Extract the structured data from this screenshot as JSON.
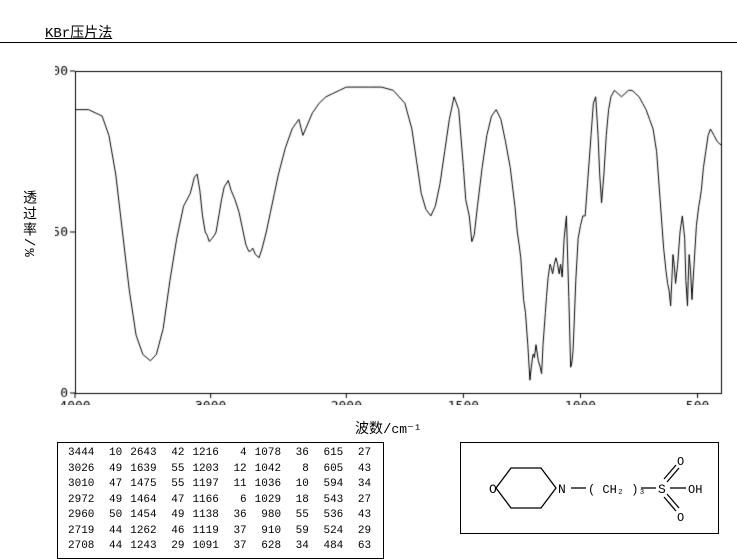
{
  "title": "KBr压片法",
  "ylabel": "透过率/%",
  "xlabel_prefix": "波数/",
  "xlabel_unit": "cm⁻¹",
  "colors": {
    "bg": "#ffffff",
    "axis": "#000000",
    "spectrum": "#000000",
    "text": "#000000"
  },
  "axes": {
    "xlim": [
      4000,
      400
    ],
    "ylim": [
      0,
      100
    ],
    "xticks": [
      4000,
      3000,
      2000,
      1500,
      1000,
      500
    ],
    "yticks": [
      0,
      50,
      100
    ],
    "label_fontsize": 14,
    "tick_fontsize": 13
  },
  "peak_table": {
    "cols": 6,
    "rows": [
      [
        3444,
        10,
        2643,
        42,
        1216,
        4,
        1078,
        36,
        615,
        27
      ],
      [
        3026,
        49,
        1639,
        55,
        1203,
        12,
        1042,
        8,
        605,
        43
      ],
      [
        3010,
        47,
        1475,
        55,
        1197,
        11,
        1036,
        10,
        594,
        34
      ],
      [
        2972,
        49,
        1464,
        47,
        1166,
        6,
        1029,
        18,
        543,
        27
      ],
      [
        2960,
        50,
        1454,
        49,
        1138,
        36,
        980,
        55,
        536,
        43
      ],
      [
        2719,
        44,
        1262,
        46,
        1119,
        37,
        910,
        59,
        524,
        29
      ],
      [
        2708,
        44,
        1243,
        29,
        1091,
        37,
        628,
        34,
        484,
        63
      ]
    ]
  },
  "molecule": {
    "label": "N— ( CH₂ )₃—S—OH",
    "ring": "morpholine",
    "so3_oxygens": 3
  },
  "spectrum": {
    "line_width": 1,
    "points": [
      [
        4000,
        88
      ],
      [
        3900,
        88
      ],
      [
        3800,
        86
      ],
      [
        3750,
        80
      ],
      [
        3700,
        68
      ],
      [
        3650,
        50
      ],
      [
        3600,
        32
      ],
      [
        3550,
        18
      ],
      [
        3500,
        12
      ],
      [
        3444,
        10
      ],
      [
        3400,
        12
      ],
      [
        3350,
        20
      ],
      [
        3300,
        35
      ],
      [
        3250,
        48
      ],
      [
        3200,
        58
      ],
      [
        3150,
        62
      ],
      [
        3120,
        67
      ],
      [
        3100,
        68
      ],
      [
        3080,
        63
      ],
      [
        3060,
        55
      ],
      [
        3040,
        50
      ],
      [
        3026,
        49
      ],
      [
        3010,
        47
      ],
      [
        2990,
        48
      ],
      [
        2972,
        49
      ],
      [
        2960,
        50
      ],
      [
        2940,
        55
      ],
      [
        2920,
        60
      ],
      [
        2900,
        64
      ],
      [
        2870,
        66
      ],
      [
        2850,
        63
      ],
      [
        2820,
        60
      ],
      [
        2790,
        56
      ],
      [
        2760,
        50
      ],
      [
        2740,
        46
      ],
      [
        2719,
        44
      ],
      [
        2708,
        44
      ],
      [
        2690,
        45
      ],
      [
        2670,
        43
      ],
      [
        2643,
        42
      ],
      [
        2620,
        45
      ],
      [
        2590,
        50
      ],
      [
        2560,
        56
      ],
      [
        2530,
        62
      ],
      [
        2500,
        68
      ],
      [
        2450,
        76
      ],
      [
        2400,
        82
      ],
      [
        2350,
        85
      ],
      [
        2320,
        80
      ],
      [
        2300,
        82
      ],
      [
        2250,
        87
      ],
      [
        2200,
        90
      ],
      [
        2150,
        92
      ],
      [
        2100,
        93
      ],
      [
        2050,
        94
      ],
      [
        2000,
        95
      ],
      [
        1950,
        95
      ],
      [
        1900,
        95
      ],
      [
        1850,
        95
      ],
      [
        1800,
        94
      ],
      [
        1750,
        90
      ],
      [
        1720,
        82
      ],
      [
        1700,
        72
      ],
      [
        1680,
        62
      ],
      [
        1660,
        57
      ],
      [
        1639,
        55
      ],
      [
        1620,
        58
      ],
      [
        1600,
        65
      ],
      [
        1580,
        75
      ],
      [
        1560,
        85
      ],
      [
        1540,
        92
      ],
      [
        1520,
        88
      ],
      [
        1500,
        70
      ],
      [
        1490,
        60
      ],
      [
        1475,
        55
      ],
      [
        1464,
        47
      ],
      [
        1454,
        49
      ],
      [
        1440,
        58
      ],
      [
        1420,
        70
      ],
      [
        1400,
        80
      ],
      [
        1380,
        86
      ],
      [
        1360,
        88
      ],
      [
        1340,
        85
      ],
      [
        1320,
        78
      ],
      [
        1300,
        70
      ],
      [
        1280,
        58
      ],
      [
        1270,
        50
      ],
      [
        1262,
        46
      ],
      [
        1255,
        42
      ],
      [
        1243,
        29
      ],
      [
        1235,
        25
      ],
      [
        1225,
        15
      ],
      [
        1216,
        4
      ],
      [
        1210,
        8
      ],
      [
        1203,
        12
      ],
      [
        1200,
        12
      ],
      [
        1197,
        11
      ],
      [
        1190,
        15
      ],
      [
        1180,
        10
      ],
      [
        1172,
        8
      ],
      [
        1166,
        6
      ],
      [
        1160,
        15
      ],
      [
        1150,
        25
      ],
      [
        1145,
        30
      ],
      [
        1138,
        36
      ],
      [
        1130,
        40
      ],
      [
        1125,
        39
      ],
      [
        1119,
        37
      ],
      [
        1112,
        40
      ],
      [
        1105,
        42
      ],
      [
        1098,
        40
      ],
      [
        1091,
        37
      ],
      [
        1085,
        40
      ],
      [
        1078,
        36
      ],
      [
        1070,
        48
      ],
      [
        1060,
        55
      ],
      [
        1050,
        30
      ],
      [
        1042,
        8
      ],
      [
        1038,
        9
      ],
      [
        1036,
        10
      ],
      [
        1032,
        13
      ],
      [
        1029,
        18
      ],
      [
        1020,
        35
      ],
      [
        1010,
        48
      ],
      [
        1000,
        52
      ],
      [
        990,
        55
      ],
      [
        980,
        55
      ],
      [
        970,
        65
      ],
      [
        955,
        80
      ],
      [
        945,
        90
      ],
      [
        935,
        92
      ],
      [
        925,
        80
      ],
      [
        918,
        68
      ],
      [
        910,
        59
      ],
      [
        900,
        68
      ],
      [
        890,
        80
      ],
      [
        880,
        88
      ],
      [
        870,
        92
      ],
      [
        855,
        94
      ],
      [
        840,
        93
      ],
      [
        825,
        92
      ],
      [
        810,
        93
      ],
      [
        795,
        94
      ],
      [
        780,
        94
      ],
      [
        765,
        93
      ],
      [
        750,
        92
      ],
      [
        735,
        90
      ],
      [
        720,
        88
      ],
      [
        705,
        85
      ],
      [
        690,
        82
      ],
      [
        675,
        75
      ],
      [
        660,
        60
      ],
      [
        645,
        45
      ],
      [
        635,
        38
      ],
      [
        628,
        34
      ],
      [
        622,
        32
      ],
      [
        615,
        27
      ],
      [
        610,
        35
      ],
      [
        605,
        43
      ],
      [
        600,
        40
      ],
      [
        594,
        34
      ],
      [
        585,
        40
      ],
      [
        575,
        50
      ],
      [
        565,
        55
      ],
      [
        555,
        48
      ],
      [
        550,
        35
      ],
      [
        543,
        27
      ],
      [
        540,
        35
      ],
      [
        536,
        43
      ],
      [
        530,
        38
      ],
      [
        524,
        29
      ],
      [
        515,
        40
      ],
      [
        505,
        52
      ],
      [
        495,
        58
      ],
      [
        490,
        60
      ],
      [
        484,
        63
      ],
      [
        475,
        70
      ],
      [
        465,
        75
      ],
      [
        455,
        80
      ],
      [
        445,
        82
      ],
      [
        430,
        80
      ],
      [
        415,
        78
      ],
      [
        400,
        77
      ]
    ]
  }
}
